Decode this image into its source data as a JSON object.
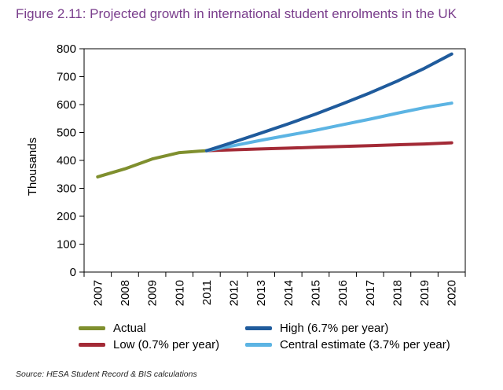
{
  "title": "Figure 2.11: Projected growth in international student enrolments in the UK",
  "source": "Source: HESA Student Record & BIS calculations",
  "chart_data": {
    "type": "line",
    "ylabel": "Thousands",
    "xlabel": "",
    "ylim": [
      0,
      800
    ],
    "yticks": [
      0,
      100,
      200,
      300,
      400,
      500,
      600,
      700,
      800
    ],
    "categories": [
      "2007",
      "2008",
      "2009",
      "2010",
      "2011",
      "2012",
      "2013",
      "2014",
      "2015",
      "2016",
      "2017",
      "2018",
      "2019",
      "2020"
    ],
    "grid": false,
    "legend_position": "bottom",
    "series": [
      {
        "name": "Actual",
        "color": "#7f8f2e",
        "x": [
          "2007",
          "2008",
          "2009",
          "2010",
          "2011"
        ],
        "values": [
          341,
          370,
          405,
          428,
          435
        ]
      },
      {
        "name": "Low (0.7% per year)",
        "color": "#a32a36",
        "x": [
          "2011",
          "2012",
          "2013",
          "2014",
          "2015",
          "2016",
          "2017",
          "2018",
          "2019",
          "2020"
        ],
        "values": [
          435,
          438,
          441,
          444,
          447,
          450,
          453,
          456,
          459,
          463
        ]
      },
      {
        "name": "High (6.7% per year)",
        "color": "#1f5b9c",
        "x": [
          "2011",
          "2012",
          "2013",
          "2014",
          "2015",
          "2016",
          "2017",
          "2018",
          "2019",
          "2020"
        ],
        "values": [
          435,
          466,
          498,
          531,
          566,
          603,
          642,
          684,
          730,
          781
        ]
      },
      {
        "name": "Central estimate (3.7% per year)",
        "color": "#5cb4e3",
        "x": [
          "2011",
          "2012",
          "2013",
          "2014",
          "2015",
          "2016",
          "2017",
          "2018",
          "2019",
          "2020"
        ],
        "values": [
          435,
          453,
          472,
          490,
          508,
          528,
          548,
          569,
          589,
          605
        ]
      }
    ]
  }
}
